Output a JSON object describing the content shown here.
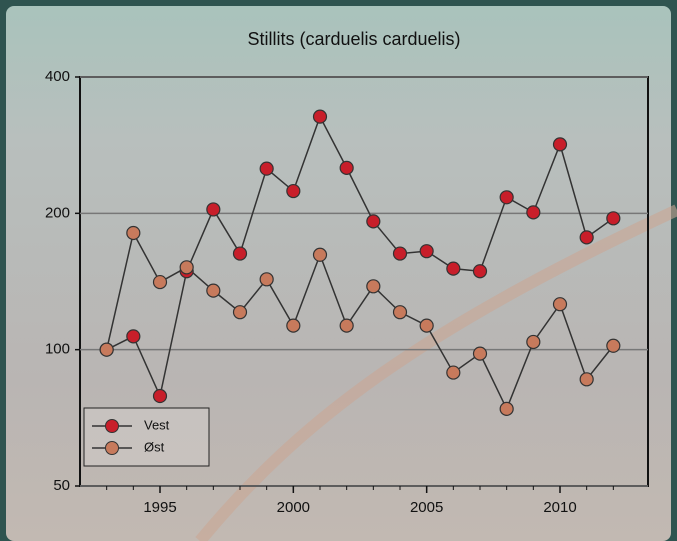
{
  "chart_data": {
    "type": "line",
    "title": "Stillits (carduelis carduelis)",
    "x": [
      1993,
      1994,
      1995,
      1996,
      1997,
      1998,
      1999,
      2000,
      2001,
      2002,
      2003,
      2004,
      2005,
      2006,
      2007,
      2008,
      2009,
      2010,
      2011,
      2012
    ],
    "series": [
      {
        "name": "Vest",
        "color": "#c81e2a",
        "values": [
          100,
          107,
          79,
          149,
          204,
          163,
          251,
          224,
          327,
          252,
          192,
          163,
          165,
          151,
          149,
          217,
          201,
          284,
          177,
          195
        ]
      },
      {
        "name": "Øst",
        "color": "#c77a5c",
        "values": [
          100,
          181,
          141,
          152,
          135,
          121,
          143,
          113,
          162,
          113,
          138,
          121,
          113,
          89,
          98,
          74,
          104,
          126,
          86,
          102
        ]
      }
    ],
    "xlim": [
      1992,
      2013.3
    ],
    "xticks": [
      1995,
      2000,
      2005,
      2010
    ],
    "ylim": [
      50,
      400
    ],
    "yticks": [
      50,
      100,
      200,
      400
    ],
    "log_scale_y": true,
    "grid": true,
    "legend": "lower left"
  }
}
